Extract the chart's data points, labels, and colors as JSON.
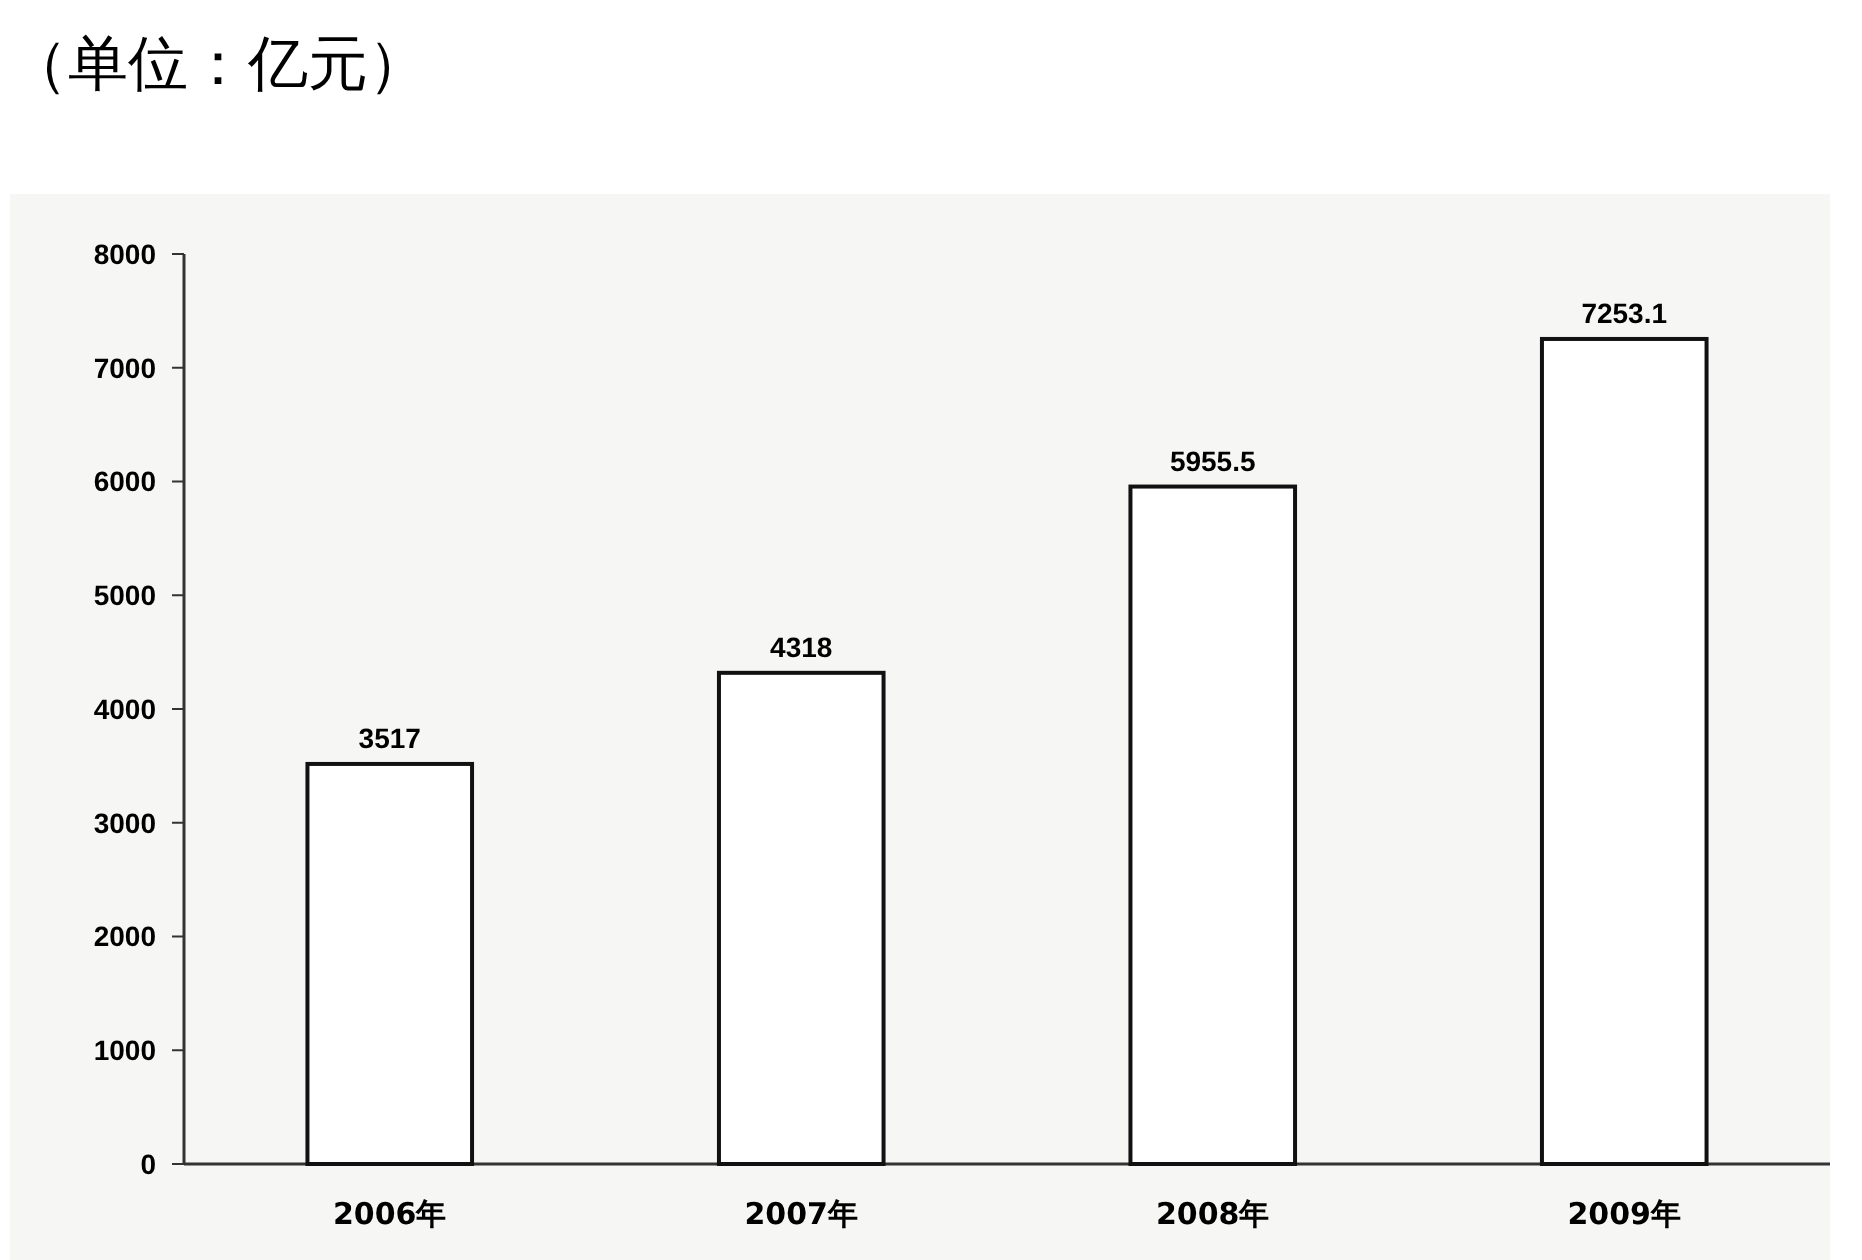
{
  "chart_data": {
    "type": "bar",
    "title": "（单位：亿元）",
    "categories": [
      "2006年",
      "2007年",
      "2008年",
      "2009年"
    ],
    "values": [
      3517,
      4318,
      5955.5,
      7253.1
    ],
    "color": "#ffffff",
    "ylim": [
      0,
      8000
    ],
    "yticks": [
      0,
      1000,
      2000,
      3000,
      4000,
      5000,
      6000,
      7000,
      8000
    ],
    "grid": false,
    "data_labels": true
  }
}
